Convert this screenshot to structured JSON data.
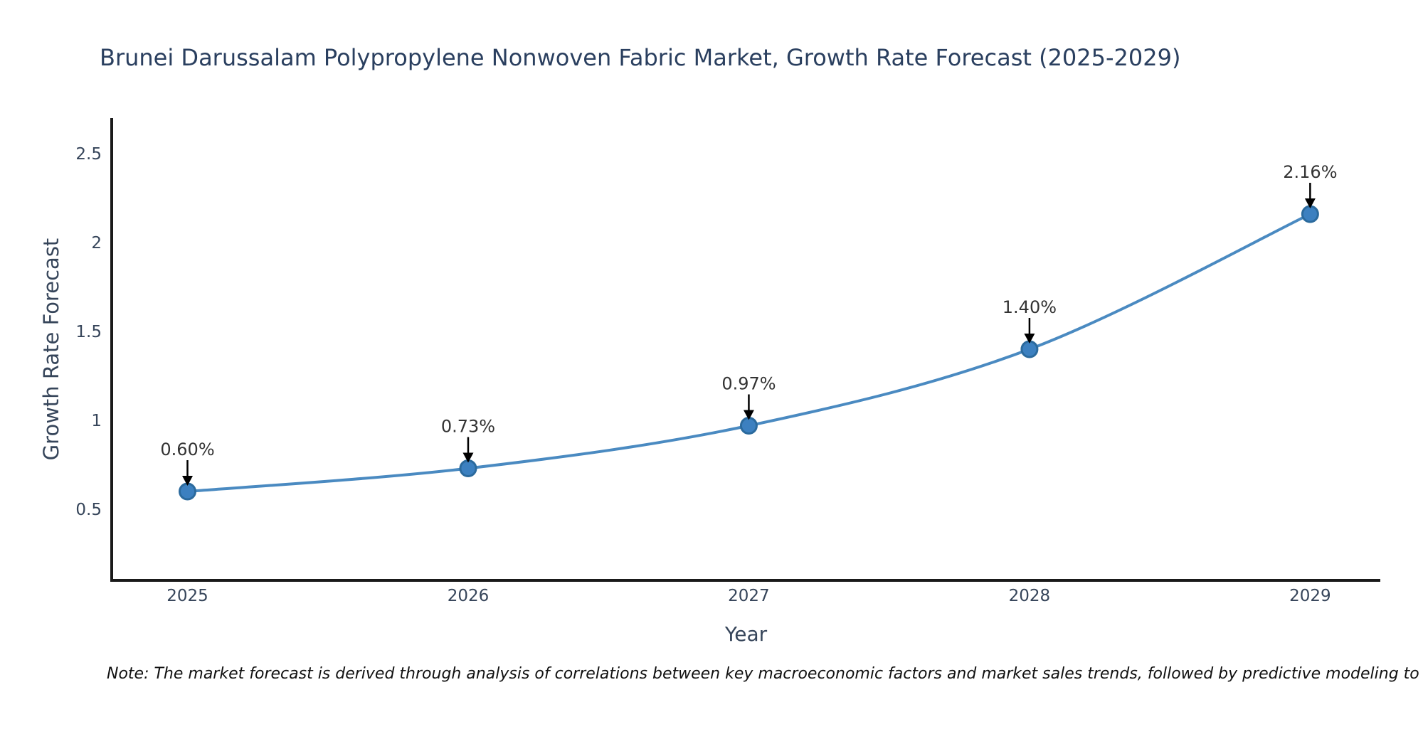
{
  "chart_data": {
    "type": "line",
    "title": "Brunei Darussalam Polypropylene Nonwoven Fabric Market, Growth Rate Forecast (2025-2029)",
    "xlabel": "Year",
    "ylabel": "Growth Rate Forecast",
    "x": [
      2025,
      2026,
      2027,
      2028,
      2029
    ],
    "values": [
      0.6,
      0.73,
      0.97,
      1.4,
      2.16
    ],
    "point_labels": [
      "0.60%",
      "0.73%",
      "0.97%",
      "1.40%",
      "2.16%"
    ],
    "series_name": "Growth Rate Forecast",
    "xtick_labels": [
      "2025",
      "2026",
      "2027",
      "2028",
      "2029"
    ],
    "ytick_values": [
      0.5,
      1,
      1.5,
      2,
      2.5
    ],
    "ytick_labels": [
      "0.5",
      "1",
      "1.5",
      "2",
      "2.5"
    ],
    "xlim": [
      2024.73,
      2029.25
    ],
    "ylim": [
      0.1,
      2.7
    ],
    "grid": false,
    "legend": "none",
    "line_shape": "spline",
    "annotation_style": "value label with downward black arrow to point"
  },
  "footnote": "Note: The market forecast is derived through analysis of correlations between key macroeconomic factors and market sales trends, followed by predictive modeling to project future sales",
  "colors": {
    "line": "#4a8ac1",
    "marker_fill": "#3c80c0",
    "marker_edge": "#2b6a9d",
    "spine": "#1a1a1a",
    "title_text": "#2a3f5f",
    "axis_text": "#36455a",
    "annotation_text": "#333333",
    "arrow": "#000000",
    "background": "#ffffff"
  }
}
